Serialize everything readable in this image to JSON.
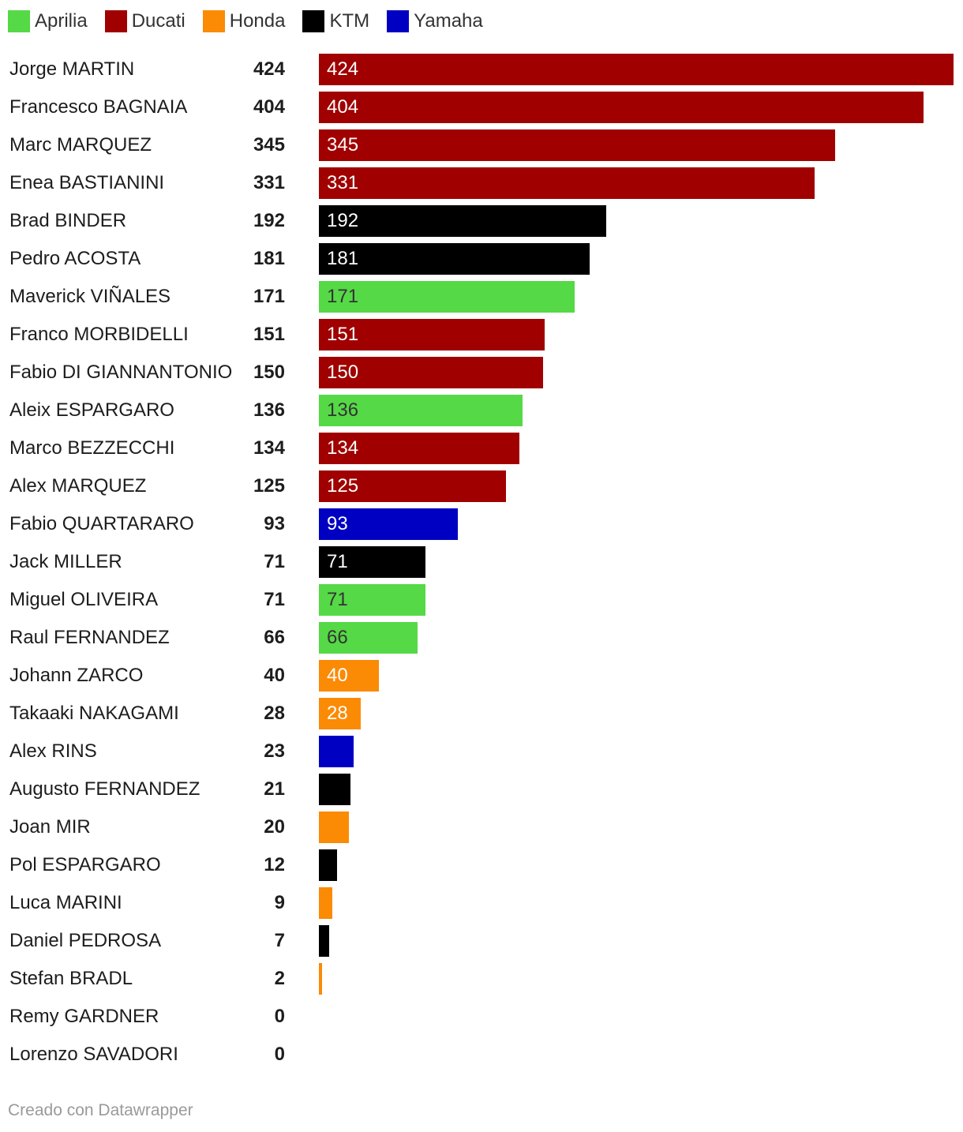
{
  "legend": [
    {
      "label": "Aprilia",
      "color": "#55d946"
    },
    {
      "label": "Ducati",
      "color": "#a00000"
    },
    {
      "label": "Honda",
      "color": "#fb8a05"
    },
    {
      "label": "KTM",
      "color": "#000000"
    },
    {
      "label": "Yamaha",
      "color": "#0000c2"
    }
  ],
  "chart_data": {
    "type": "bar",
    "orientation": "horizontal",
    "xlim": [
      0,
      424
    ],
    "grid": false,
    "legend_position": "top-left",
    "categories": [
      "Jorge MARTIN",
      "Francesco BAGNAIA",
      "Marc MARQUEZ",
      "Enea BASTIANINI",
      "Brad BINDER",
      "Pedro ACOSTA",
      "Maverick VIÑALES",
      "Franco MORBIDELLI",
      "Fabio DI GIANNANTONIO",
      "Aleix ESPARGARO",
      "Marco BEZZECCHI",
      "Alex MARQUEZ",
      "Fabio QUARTARARO",
      "Jack MILLER",
      "Miguel OLIVEIRA",
      "Raul FERNANDEZ",
      "Johann ZARCO",
      "Takaaki NAKAGAMI",
      "Alex RINS",
      "Augusto FERNANDEZ",
      "Joan MIR",
      "Pol ESPARGARO",
      "Luca MARINI",
      "Daniel PEDROSA",
      "Stefan BRADL",
      "Remy GARDNER",
      "Lorenzo SAVADORI"
    ],
    "values": [
      424,
      404,
      345,
      331,
      192,
      181,
      171,
      151,
      150,
      136,
      134,
      125,
      93,
      71,
      71,
      66,
      40,
      28,
      23,
      21,
      20,
      12,
      9,
      7,
      2,
      0,
      0
    ],
    "manufacturers": [
      "Ducati",
      "Ducati",
      "Ducati",
      "Ducati",
      "KTM",
      "KTM",
      "Aprilia",
      "Ducati",
      "Ducati",
      "Aprilia",
      "Ducati",
      "Ducati",
      "Yamaha",
      "KTM",
      "Aprilia",
      "Aprilia",
      "Honda",
      "Honda",
      "Yamaha",
      "KTM",
      "Honda",
      "KTM",
      "Honda",
      "KTM",
      "Honda",
      "",
      ""
    ],
    "bar_label_shown": [
      true,
      true,
      true,
      true,
      true,
      true,
      true,
      true,
      true,
      true,
      true,
      true,
      true,
      true,
      true,
      true,
      true,
      true,
      false,
      false,
      false,
      false,
      false,
      false,
      false,
      false,
      false
    ]
  },
  "footer": "Creado con Datawrapper"
}
